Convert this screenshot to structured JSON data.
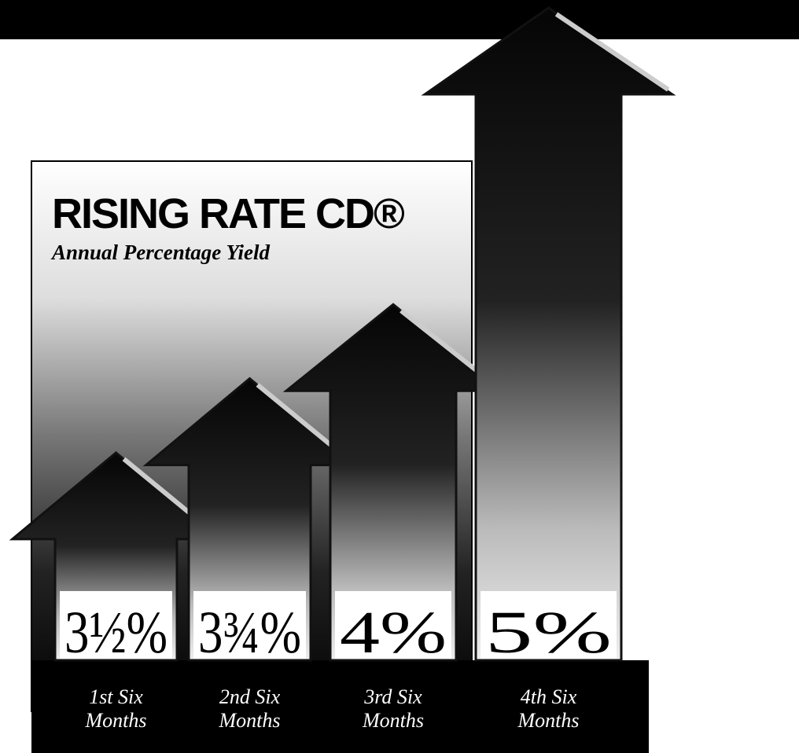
{
  "chart_data": {
    "type": "bar",
    "title": "RISING RATE CD®",
    "subtitle": "Annual Percentage Yield",
    "categories": [
      "1st Six Months",
      "2nd Six Months",
      "3rd Six Months",
      "4th Six Months"
    ],
    "values": [
      3.5,
      3.75,
      4,
      5
    ],
    "value_labels": [
      "3½%",
      "3¾%",
      "4%",
      "5%"
    ],
    "color": "#111111"
  }
}
